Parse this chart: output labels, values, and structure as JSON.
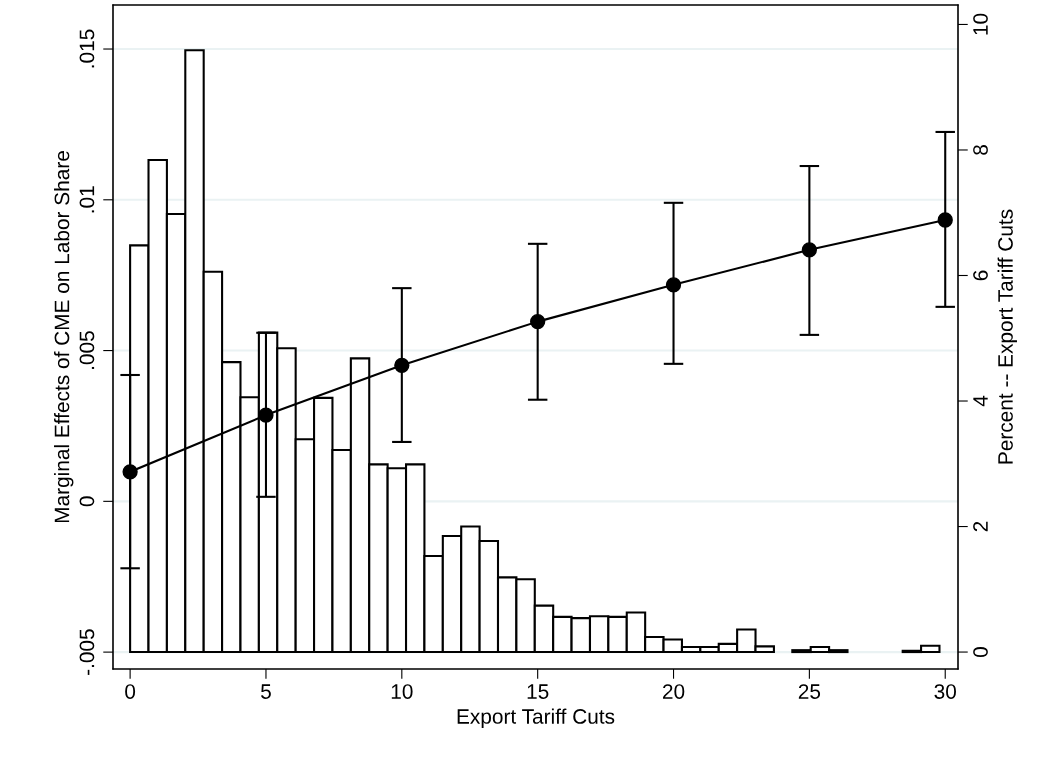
{
  "chart_data": {
    "type": "line",
    "xlabel": "Export Tariff Cuts",
    "ylabel": "Marginal Effects of CME on Labor Share",
    "y2label": "Percent -- Export Tariff Cuts",
    "xlim": [
      -0.63,
      30.47
    ],
    "xticks": [
      0,
      5,
      10,
      15,
      20,
      25,
      30
    ],
    "ylim": [
      -0.00556,
      0.01646
    ],
    "yticks": [
      {
        "value": -0.005,
        "label": "-.005"
      },
      {
        "value": 0,
        "label": "0"
      },
      {
        "value": 0.005,
        "label": ".005"
      },
      {
        "value": 0.01,
        "label": ".01"
      },
      {
        "value": 0.015,
        "label": ".015"
      }
    ],
    "y2lim": [
      -0.27,
      10.31
    ],
    "y2ticks": [
      0,
      2,
      4,
      6,
      8,
      10
    ],
    "grid": "y",
    "legend": false,
    "marker": "circle",
    "line_style": "solid",
    "series": [
      {
        "type": "histogram",
        "axis": "y2",
        "color": "#ffffff",
        "bins": [
          0,
          0.677,
          1.354,
          2.031,
          2.708,
          3.385,
          4.062,
          4.739,
          5.416,
          6.093,
          6.77,
          7.447,
          8.124,
          8.801,
          9.478,
          10.155,
          10.832,
          11.509,
          12.186,
          12.863,
          13.54,
          14.217,
          14.894,
          15.571,
          16.248,
          16.925,
          17.602,
          18.279,
          18.956,
          19.633,
          20.31,
          20.987,
          21.664,
          22.341,
          23.018,
          23.695,
          24.372,
          25.049,
          25.726,
          26.403,
          27.08,
          27.757,
          28.434,
          29.111,
          29.788
        ],
        "values": [
          6.48,
          7.84,
          6.98,
          9.59,
          6.06,
          4.62,
          4.06,
          5.09,
          4.84,
          3.39,
          4.05,
          3.22,
          4.68,
          2.99,
          2.93,
          2.99,
          1.53,
          1.85,
          2.0,
          1.77,
          1.19,
          1.16,
          0.74,
          0.56,
          0.54,
          0.57,
          0.56,
          0.63,
          0.24,
          0.2,
          0.08,
          0.08,
          0.13,
          0.36,
          0.09,
          0,
          0.03,
          0.08,
          0.03,
          0,
          0,
          0,
          0.02,
          0.1
        ]
      },
      {
        "color": "#000000",
        "x": [
          0,
          5,
          10,
          15,
          20,
          25,
          30
        ],
        "values": [
          0.00098,
          0.00286,
          0.00451,
          0.00596,
          0.00718,
          0.00834,
          0.00933
        ],
        "errors": [
          [
            -0.00222,
            0.00419
          ],
          [
            0.00015,
            0.00559
          ],
          [
            0.00197,
            0.00707
          ],
          [
            0.00337,
            0.00854
          ],
          [
            0.00456,
            0.0099
          ],
          [
            0.00552,
            0.01112
          ],
          [
            0.00645,
            0.01225
          ]
        ]
      }
    ]
  }
}
